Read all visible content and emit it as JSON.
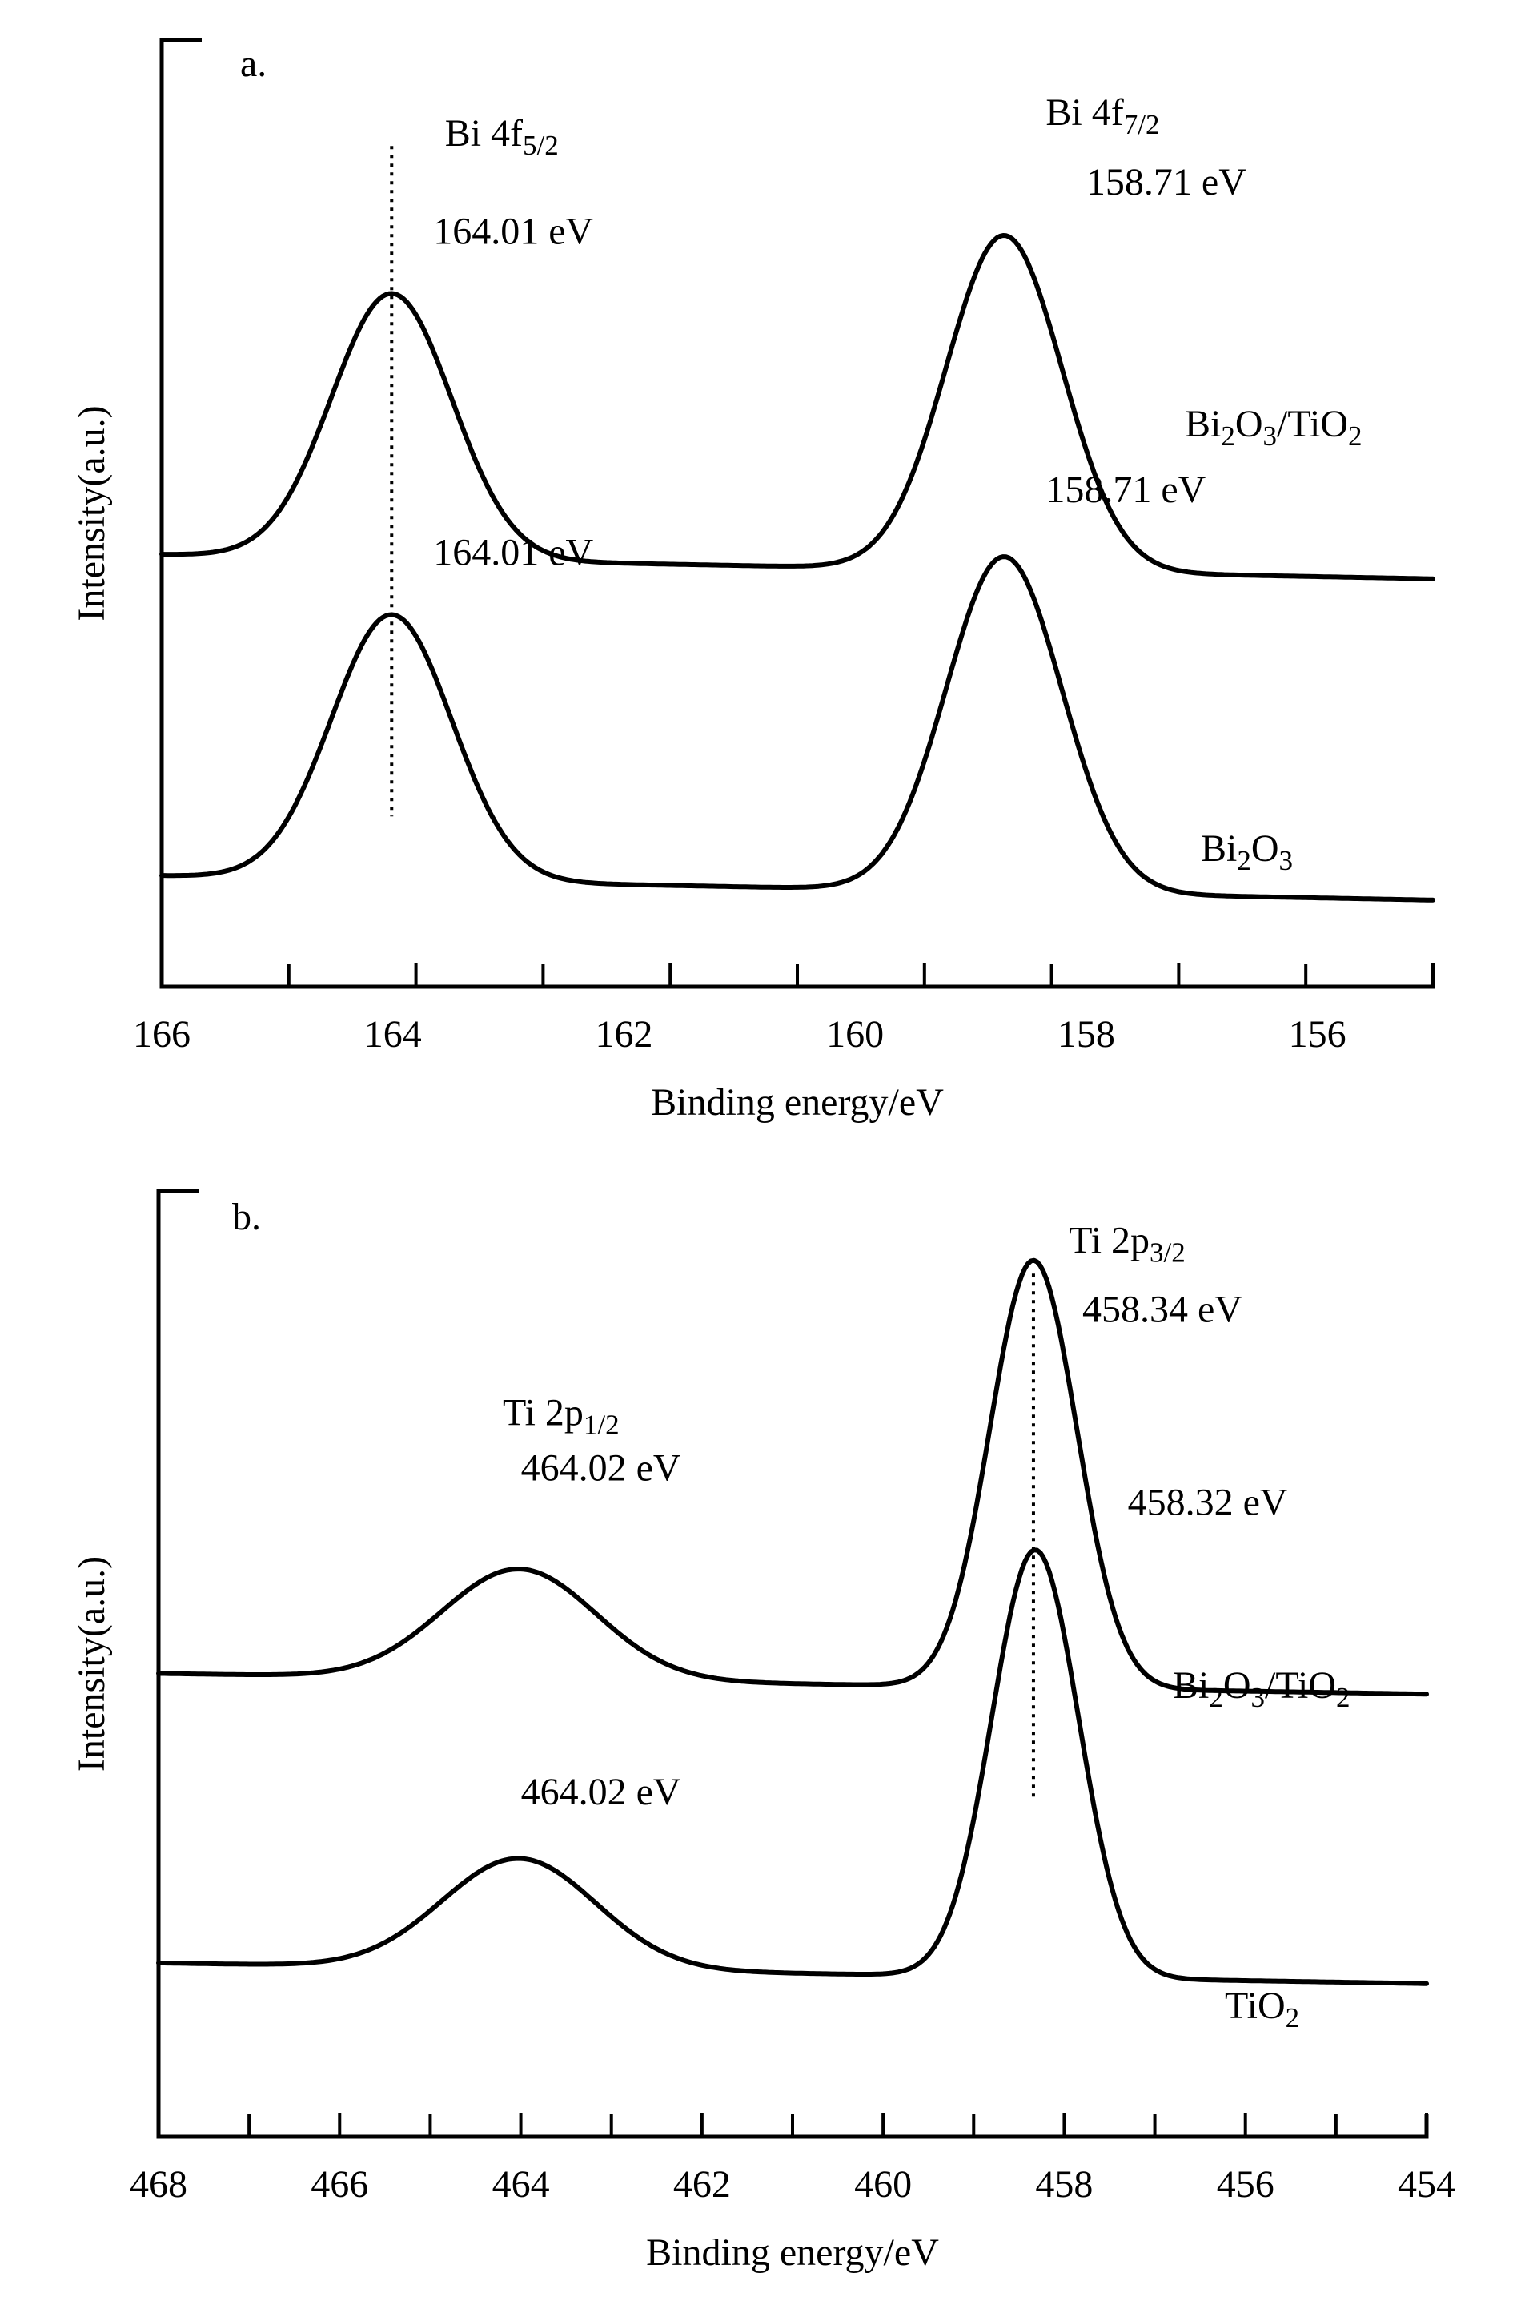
{
  "chart_data": [
    {
      "type": "line",
      "panel_label": "a.",
      "xlabel": "Binding energy/eV",
      "ylabel": "Intensity(a.u.)",
      "xlim": [
        166,
        155
      ],
      "x_ticks": [
        "166",
        "164",
        "162",
        "160",
        "158",
        "156"
      ],
      "series": [
        {
          "name": "Bi2O3/TiO2",
          "label_parts": [
            [
              "Bi",
              ""
            ],
            [
              "2",
              "sub"
            ],
            [
              "O",
              ""
            ],
            [
              "3",
              "sub"
            ],
            [
              "/TiO",
              ""
            ],
            [
              "2",
              "sub"
            ]
          ],
          "baseline": 0.46,
          "peaks": [
            {
              "center": 164.01,
              "height": 0.38,
              "sigma": 0.52
            },
            {
              "center": 158.71,
              "height": 0.48,
              "sigma": 0.5
            }
          ],
          "shift_right": 0.035
        },
        {
          "name": "Bi2O3",
          "label_parts": [
            [
              "Bi",
              ""
            ],
            [
              "2",
              "sub"
            ],
            [
              "O",
              ""
            ],
            [
              "3",
              "sub"
            ]
          ],
          "baseline": 0.0,
          "peaks": [
            {
              "center": 164.01,
              "height": 0.38,
              "sigma": 0.52
            },
            {
              "center": 158.71,
              "height": 0.48,
              "sigma": 0.5
            }
          ],
          "shift_right": 0.035
        }
      ],
      "annotations": [
        {
          "text_parts": [
            [
              "Bi 4f",
              ""
            ],
            [
              "5/2",
              "sub"
            ]
          ],
          "anchor": [
            163.55,
            1.08
          ]
        },
        {
          "text_parts": [
            [
              "164.01 eV",
              ""
            ]
          ],
          "anchor": [
            163.65,
            0.94
          ]
        },
        {
          "text_parts": [
            [
              "Bi 4f",
              ""
            ],
            [
              "7/2",
              "sub"
            ]
          ],
          "anchor": [
            158.35,
            1.11
          ]
        },
        {
          "text_parts": [
            [
              "158.71 eV",
              ""
            ]
          ],
          "anchor": [
            158.0,
            1.01
          ]
        },
        {
          "text_parts": [
            [
              "164.01 eV",
              ""
            ]
          ],
          "anchor": [
            163.65,
            0.48
          ]
        },
        {
          "text_parts": [
            [
              "158.71 eV",
              ""
            ]
          ],
          "anchor": [
            158.35,
            0.57
          ]
        }
      ],
      "reference_line": 164.01
    },
    {
      "type": "line",
      "panel_label": "b.",
      "xlabel": "Binding energy/eV",
      "ylabel": "Intensity(a.u.)",
      "xlim": [
        468,
        454
      ],
      "x_ticks": [
        "468",
        "466",
        "464",
        "462",
        "460",
        "458",
        "456",
        "454"
      ],
      "series": [
        {
          "name": "Bi2O3/TiO2",
          "label_parts": [
            [
              "Bi",
              ""
            ],
            [
              "2",
              "sub"
            ],
            [
              "O",
              ""
            ],
            [
              "3",
              "sub"
            ],
            [
              "/TiO",
              ""
            ],
            [
              "2",
              "sub"
            ]
          ],
          "baseline": 0.42,
          "peaks": [
            {
              "center": 464.02,
              "height": 0.16,
              "sigma": 0.85
            },
            {
              "center": 458.34,
              "height": 0.62,
              "sigma": 0.48
            }
          ],
          "shift_right": 0.03
        },
        {
          "name": "TiO2",
          "label_parts": [
            [
              "TiO",
              ""
            ],
            [
              "2",
              "sub"
            ]
          ],
          "baseline": 0.0,
          "peaks": [
            {
              "center": 464.02,
              "height": 0.16,
              "sigma": 0.85
            },
            {
              "center": 458.32,
              "height": 0.62,
              "sigma": 0.48
            }
          ],
          "shift_right": 0.03
        }
      ],
      "annotations": [
        {
          "text_parts": [
            [
              "Ti 2p",
              ""
            ],
            [
              "1/2",
              "sub"
            ]
          ],
          "anchor": [
            464.2,
            0.81
          ]
        },
        {
          "text_parts": [
            [
              "464.02 eV",
              ""
            ]
          ],
          "anchor": [
            464.0,
            0.73
          ]
        },
        {
          "text_parts": [
            [
              "Ti 2p",
              ""
            ],
            [
              "3/2",
              "sub"
            ]
          ],
          "anchor": [
            457.95,
            1.06
          ]
        },
        {
          "text_parts": [
            [
              "458.34 eV",
              ""
            ]
          ],
          "anchor": [
            457.8,
            0.96
          ]
        },
        {
          "text_parts": [
            [
              "458.32 eV",
              ""
            ]
          ],
          "anchor": [
            457.3,
            0.68
          ]
        },
        {
          "text_parts": [
            [
              "464.02 eV",
              ""
            ]
          ],
          "anchor": [
            464.0,
            0.26
          ]
        }
      ],
      "reference_line": 458.34
    }
  ]
}
